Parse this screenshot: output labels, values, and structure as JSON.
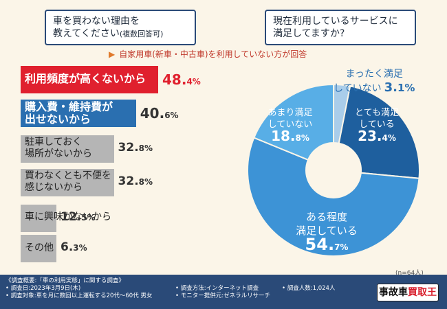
{
  "question1": {
    "line1": "車を買わない理由を",
    "line2": "教えてください",
    "suffix": "(複数回答可)"
  },
  "question2": {
    "line1": "現在利用しているサービスに",
    "line2": "満足してますか?"
  },
  "note": {
    "arrow": "▶",
    "text": "自家用車(新車・中古車)を利用していない方が回答"
  },
  "colors": {
    "red": "#e0202e",
    "blue": "#2a6fb0",
    "gray": "#b5b5b5",
    "navy": "#2a4a78"
  },
  "chart_data": [
    {
      "type": "bar",
      "orientation": "horizontal",
      "categories": [
        "利用頻度が高くないから",
        "購入費・維持費が出せないから",
        "駐車しておく場所がないから",
        "買わなくとも不便を感じないから",
        "車に興味がないから",
        "その他"
      ],
      "values": [
        48.4,
        40.6,
        32.8,
        32.8,
        12.5,
        6.3
      ],
      "unit": "%",
      "bar_labels": [
        [
          "利用頻度が高くないから"
        ],
        [
          "購入費・維持費が",
          "出せないから"
        ],
        [
          "駐車しておく",
          "場所がないから"
        ],
        [
          "買わなくとも不便を",
          "感じないから"
        ],
        [
          "車に興味がないから"
        ],
        [
          "その他"
        ]
      ],
      "value_labels": [
        [
          "48.",
          "4%"
        ],
        [
          "40.",
          "6%"
        ],
        [
          "32.",
          "8%"
        ],
        [
          "32.",
          "8%"
        ],
        [
          "12.",
          "5%"
        ],
        [
          "6.",
          "3%"
        ]
      ],
      "colors": [
        "#e0202e",
        "#2a6fb0",
        "#b5b5b5",
        "#b5b5b5",
        "#b5b5b5",
        "#b5b5b5"
      ]
    },
    {
      "type": "pie",
      "categories": [
        "まったく満足していない",
        "とても満足している",
        "ある程度満足している",
        "あまり満足していない"
      ],
      "values": [
        3.1,
        23.4,
        54.7,
        18.8
      ],
      "unit": "%",
      "colors": [
        "#a9cdea",
        "#1e5f9e",
        "#3d93d6",
        "#58aee6"
      ],
      "labels": {
        "very_dissatisfied": {
          "line1": "まったく満足",
          "line2": "していない",
          "value": "3.",
          "value_small": "1%"
        },
        "very_satisfied": {
          "line1": "とても満足",
          "line2": "している",
          "value": "23.",
          "value_small": "4%"
        },
        "somewhat_satisfied": {
          "line1": "ある程度",
          "line2": "満足している",
          "value": "54.",
          "value_small": "7%"
        },
        "not_very_satisfied": {
          "line1": "あまり満足",
          "line2": "していない",
          "value": "18.",
          "value_small": "8%"
        }
      },
      "sample": "(n=64人)"
    }
  ],
  "footer": {
    "overview": "《調査概要:「車の利用実態」に関する調査》",
    "date": "• 調査日:2023年3月9日(木)",
    "target": "• 調査対象:車を月に数回以上運転する20代〜60代 男女",
    "method": "• 調査方法:インターネット調査",
    "provider": "• モニター提供元:ゼネラルリサーチ",
    "count": "• 調査人数:1,024人"
  },
  "logo": {
    "black": "事故車",
    "red": "買取王"
  }
}
